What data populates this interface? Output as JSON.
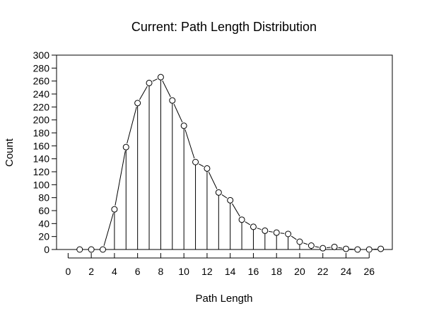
{
  "chart_data": {
    "type": "line",
    "title": "Current:  Path Length Distribution",
    "xlabel": "Path Length",
    "ylabel": "Count",
    "xlim": [
      -1,
      28
    ],
    "ylim": [
      0,
      300
    ],
    "x_ticks": [
      0,
      2,
      4,
      6,
      8,
      10,
      12,
      14,
      16,
      18,
      20,
      22,
      24,
      26
    ],
    "y_ticks": [
      0,
      20,
      40,
      60,
      80,
      100,
      120,
      140,
      160,
      180,
      200,
      220,
      240,
      260,
      280,
      300
    ],
    "grid": false,
    "legend": "none",
    "style": "points connected by line segments with vertical drop lines to zero",
    "x": [
      1,
      2,
      3,
      4,
      5,
      6,
      7,
      8,
      9,
      10,
      11,
      12,
      13,
      14,
      15,
      16,
      17,
      18,
      19,
      20,
      21,
      22,
      23,
      24,
      25,
      26,
      27
    ],
    "values": [
      0,
      0,
      0,
      62,
      158,
      226,
      257,
      266,
      230,
      191,
      135,
      125,
      88,
      76,
      46,
      35,
      29,
      26,
      24,
      12,
      6,
      2,
      4,
      1,
      0,
      0,
      1
    ]
  }
}
